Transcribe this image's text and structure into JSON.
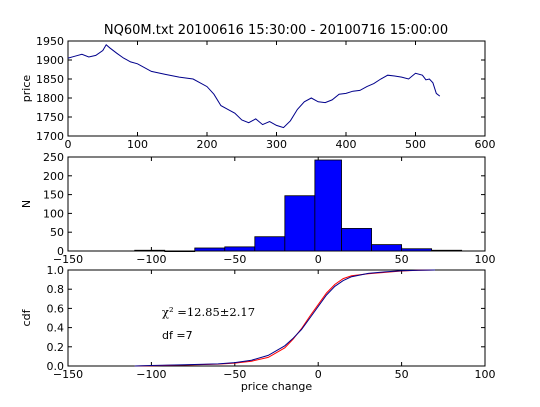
{
  "figure_title": "NQ60M.txt 20100616 15:30:00 - 20100716 15:00:00",
  "colors": {
    "series": "#00008b",
    "bar": "#0000ff",
    "bar_edge": "#000000",
    "fit": "#ff0000",
    "axis": "#000000"
  },
  "chart_data": [
    {
      "type": "line",
      "ylabel": "price",
      "xlim": [
        0,
        600
      ],
      "ylim": [
        1700,
        1950
      ],
      "xticks": [
        "0",
        "100",
        "200",
        "300",
        "400",
        "500",
        "600"
      ],
      "yticks": [
        "1700",
        "1750",
        "1800",
        "1850",
        "1900",
        "1950"
      ],
      "grid": false,
      "series": [
        {
          "x": [
            0,
            10,
            20,
            30,
            40,
            50,
            55,
            60,
            70,
            80,
            90,
            100,
            120,
            140,
            160,
            180,
            200,
            210,
            220,
            230,
            240,
            250,
            260,
            270,
            280,
            290,
            300,
            310,
            320,
            330,
            340,
            350,
            360,
            370,
            380,
            390,
            400,
            410,
            420,
            430,
            440,
            450,
            460,
            470,
            480,
            490,
            500,
            510,
            515,
            520,
            525,
            530,
            535
          ],
          "y": [
            1905,
            1910,
            1915,
            1908,
            1912,
            1925,
            1940,
            1932,
            1918,
            1905,
            1895,
            1890,
            1870,
            1862,
            1855,
            1850,
            1830,
            1810,
            1780,
            1770,
            1760,
            1742,
            1735,
            1745,
            1730,
            1738,
            1728,
            1722,
            1740,
            1770,
            1790,
            1800,
            1790,
            1788,
            1795,
            1810,
            1812,
            1818,
            1820,
            1830,
            1838,
            1850,
            1860,
            1858,
            1855,
            1850,
            1865,
            1860,
            1848,
            1850,
            1840,
            1812,
            1805
          ]
        }
      ]
    },
    {
      "type": "bar",
      "ylabel": "N",
      "xlim": [
        -150,
        100
      ],
      "ylim": [
        0,
        250
      ],
      "xticks": [
        "−150",
        "−100",
        "−50",
        "0",
        "50",
        "100"
      ],
      "yticks": [
        "0",
        "50",
        "100",
        "150",
        "200",
        "250"
      ],
      "bin_edges": [
        -110,
        -92,
        -74,
        -56,
        -38,
        -20,
        -2,
        14,
        32,
        50,
        68,
        86
      ],
      "values": [
        2,
        0,
        8,
        11,
        38,
        147,
        242,
        60,
        17,
        6,
        2
      ]
    },
    {
      "type": "line",
      "xlabel": "price change",
      "ylabel": "cdf",
      "xlim": [
        -150,
        100
      ],
      "ylim": [
        0,
        1
      ],
      "xticks": [
        "−150",
        "−100",
        "−50",
        "0",
        "50",
        "100"
      ],
      "yticks": [
        "0.0",
        "0.2",
        "0.4",
        "0.6",
        "0.8",
        "1.0"
      ],
      "annotations": [
        "χ² =12.85±2.17",
        "df =7"
      ],
      "series": [
        {
          "x": [
            -110,
            -100,
            -80,
            -60,
            -50,
            -40,
            -30,
            -20,
            -15,
            -10,
            -5,
            0,
            5,
            10,
            15,
            20,
            30,
            40,
            50,
            60,
            70
          ],
          "y": [
            0.0,
            0.003,
            0.01,
            0.02,
            0.03,
            0.05,
            0.09,
            0.19,
            0.28,
            0.39,
            0.52,
            0.64,
            0.76,
            0.85,
            0.91,
            0.94,
            0.96,
            0.975,
            0.99,
            0.997,
            1.0
          ]
        },
        {
          "x": [
            -110,
            -100,
            -80,
            -60,
            -50,
            -40,
            -30,
            -20,
            -15,
            -10,
            -5,
            0,
            5,
            10,
            15,
            20,
            30,
            40,
            50,
            60,
            70
          ],
          "y": [
            0.0,
            0.005,
            0.012,
            0.022,
            0.035,
            0.06,
            0.11,
            0.21,
            0.29,
            0.38,
            0.5,
            0.62,
            0.74,
            0.83,
            0.89,
            0.93,
            0.965,
            0.98,
            0.992,
            0.998,
            1.0
          ]
        }
      ]
    }
  ]
}
